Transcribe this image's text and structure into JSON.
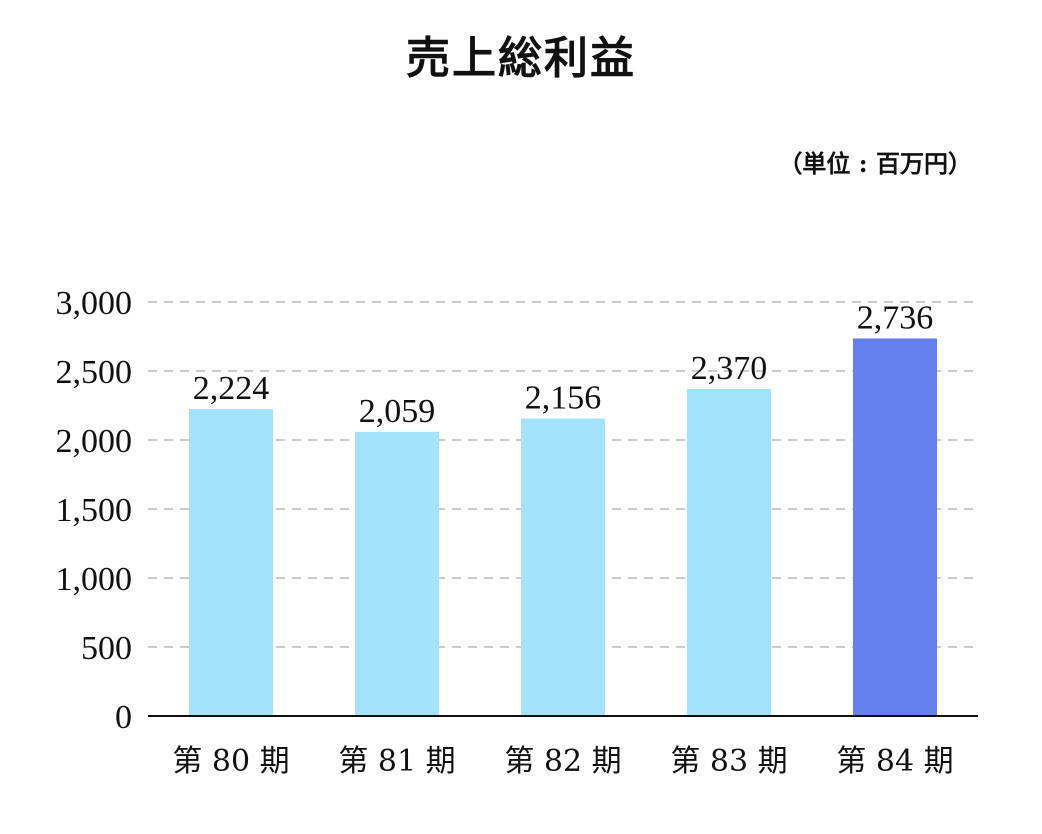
{
  "chart_data": {
    "type": "bar",
    "title": "売上総利益",
    "unit": "（単位 : 百万円）",
    "categories": [
      "第 80 期",
      "第 81 期",
      "第 82 期",
      "第 83 期",
      "第 84 期"
    ],
    "values": [
      2224,
      2059,
      2156,
      2370,
      2736
    ],
    "value_labels": [
      "2,224",
      "2,059",
      "2,156",
      "2,370",
      "2,736"
    ],
    "yticks": [
      0,
      500,
      1000,
      1500,
      2000,
      2500,
      3000
    ],
    "ytick_labels": [
      "0",
      "500",
      "1,000",
      "1,500",
      "2,000",
      "2,500",
      "3,000"
    ],
    "ylim": [
      0,
      3000
    ],
    "grid": true,
    "colors": {
      "bar": "#a3e4fc",
      "highlight_bar": "#6680f0",
      "grid": "#bbbbbb",
      "axis": "#111111"
    },
    "highlight_index": 4
  }
}
